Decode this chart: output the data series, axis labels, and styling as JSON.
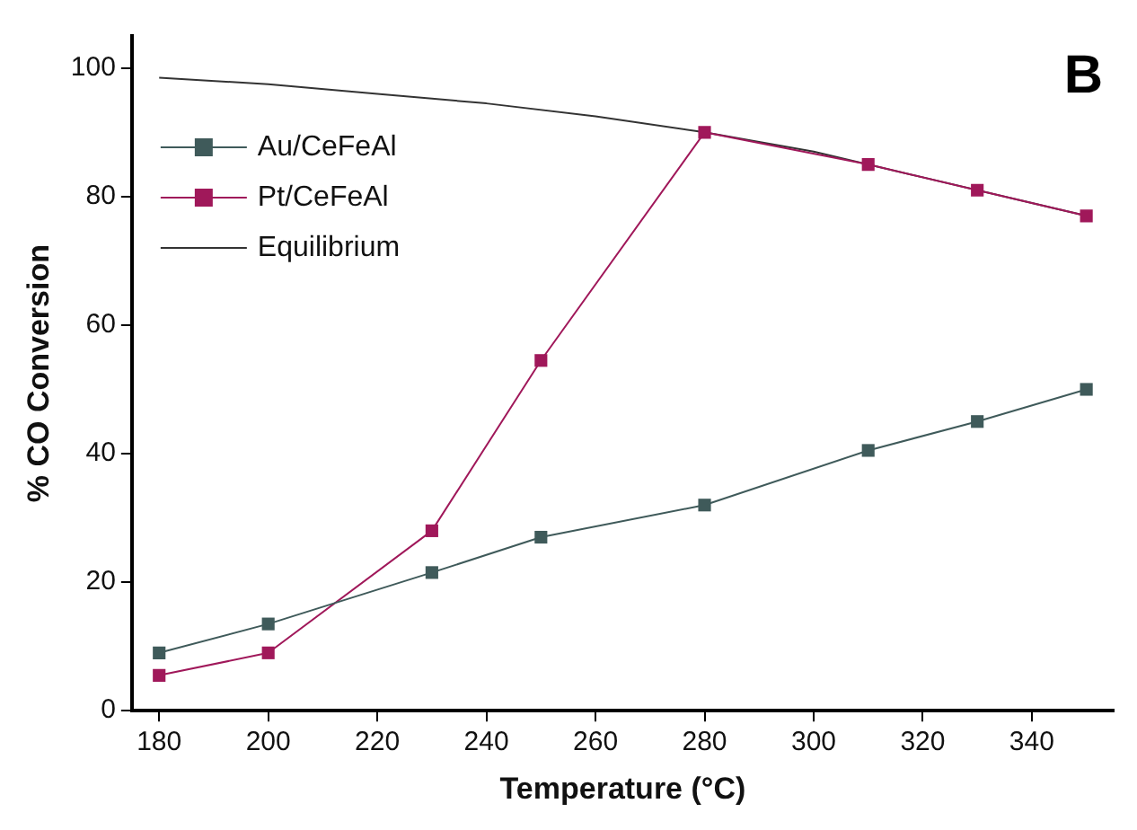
{
  "chart_data": {
    "type": "line",
    "xlabel": "Temperature (°C)",
    "ylabel": "% CO Conversion",
    "annotations": [
      "B"
    ],
    "xlim": [
      175,
      355
    ],
    "xticks": [
      180,
      200,
      220,
      240,
      260,
      280,
      300,
      320,
      340
    ],
    "ylim": [
      0,
      105
    ],
    "yticks": [
      0,
      20,
      40,
      60,
      80,
      100
    ],
    "grid": false,
    "legend": "top left",
    "series": [
      {
        "name": "Au/CeFeAl",
        "color": "#3f5a5a",
        "marker": "square",
        "x": [
          180,
          200,
          230,
          250,
          280,
          310,
          330,
          350
        ],
        "values": [
          9,
          13.5,
          21.5,
          27,
          32,
          40.5,
          45,
          50
        ]
      },
      {
        "name": "Pt/CeFeAl",
        "color": "#a0185a",
        "marker": "square",
        "x": [
          180,
          200,
          230,
          250,
          280,
          310,
          330,
          350
        ],
        "values": [
          5.5,
          9,
          28,
          54.5,
          90,
          85,
          81,
          77
        ]
      },
      {
        "name": "Equilibrium",
        "color": "#333333",
        "marker": "none",
        "x": [
          180,
          200,
          220,
          240,
          260,
          280,
          300,
          320,
          340,
          350
        ],
        "values": [
          98.5,
          97.5,
          96,
          94.5,
          92.5,
          90,
          87,
          83,
          79,
          77
        ]
      }
    ]
  }
}
